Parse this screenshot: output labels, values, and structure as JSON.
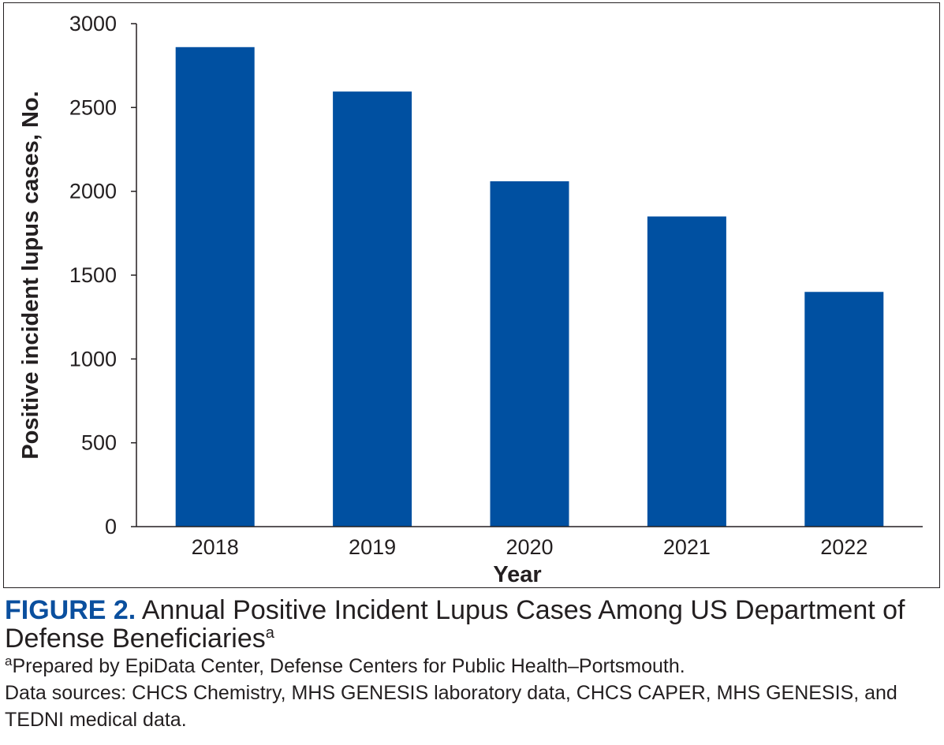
{
  "chart_data": {
    "type": "bar",
    "categories": [
      "2018",
      "2019",
      "2020",
      "2021",
      "2022"
    ],
    "values": [
      2860,
      2595,
      2060,
      1850,
      1400
    ],
    "title": "",
    "xlabel": "Year",
    "ylabel": "Positive incident lupus cases, No.",
    "ylim": [
      0,
      3000
    ],
    "yticks": [
      "0",
      "500",
      "1000",
      "1500",
      "2000",
      "2500",
      "3000"
    ],
    "grid": false,
    "bar_color": "#0050a1"
  },
  "caption": {
    "label": "FIGURE 2.",
    "title": "Annual Positive Incident Lupus Cases Among US Department of Defense Beneficiaries",
    "title_marker": "a",
    "footnote_marker": "a",
    "footnote": "Prepared by EpiData Center, Defense Centers for Public Health–Portsmouth.",
    "sources": "Data sources: CHCS Chemistry, MHS GENESIS laboratory data, CHCS CAPER, MHS GENESIS, and TEDNI medical data."
  }
}
